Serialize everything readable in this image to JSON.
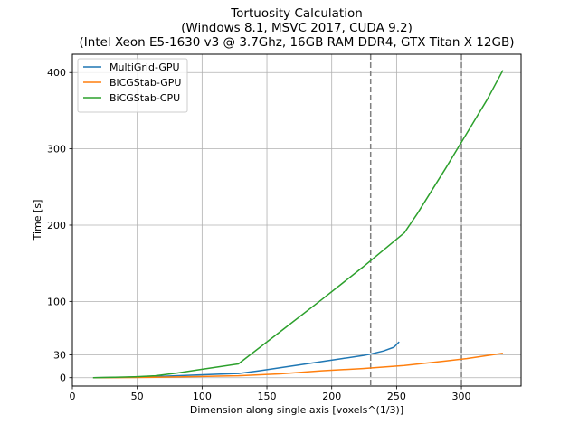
{
  "chart_data": {
    "type": "line",
    "title": [
      "Tortuosity Calculation",
      "(Windows 8.1, MSVC 2017, CUDA 9.2)",
      "(Intel Xeon E5-1630 v3 @ 3.7Ghz, 16GB RAM DDR4, GTX Titan X 12GB)"
    ],
    "xlabel": "Dimension along single axis [voxels^(1/3)]",
    "ylabel": "Time [s]",
    "xlim": [
      0,
      346
    ],
    "ylim": [
      -11,
      424
    ],
    "xticks": [
      0,
      50,
      100,
      150,
      200,
      250,
      300
    ],
    "yticks": [
      0,
      30,
      100,
      200,
      300,
      400
    ],
    "grid": true,
    "legend_position": "top-left",
    "vlines": [
      {
        "x": 230,
        "style": "dashed",
        "color": "#808080"
      },
      {
        "x": 300,
        "style": "dashed",
        "color": "#808080"
      }
    ],
    "series": [
      {
        "name": "MultiGrid-GPU",
        "color": "#1f77b4",
        "x": [
          16,
          32,
          48,
          64,
          80,
          96,
          112,
          128,
          144,
          160,
          176,
          192,
          208,
          224,
          230,
          240,
          248,
          252
        ],
        "y": [
          0,
          0.3,
          0.8,
          1.5,
          2.5,
          3.5,
          4.5,
          5.5,
          9,
          13,
          17,
          21,
          25,
          29,
          31,
          35,
          40,
          47
        ]
      },
      {
        "name": "BiCGStab-GPU",
        "color": "#ff7f0e",
        "x": [
          16,
          32,
          48,
          64,
          80,
          96,
          112,
          128,
          160,
          192,
          224,
          256,
          272,
          288,
          304,
          320,
          332
        ],
        "y": [
          0,
          0.1,
          0.3,
          0.5,
          1,
          1.5,
          2,
          2.5,
          5,
          9,
          12,
          16,
          19,
          22,
          25,
          29,
          32
        ]
      },
      {
        "name": "BiCGStab-CPU",
        "color": "#2ca02c",
        "x": [
          16,
          32,
          48,
          64,
          80,
          96,
          112,
          128,
          160,
          192,
          224,
          256,
          266,
          288,
          304,
          320,
          332
        ],
        "y": [
          0,
          0.5,
          1.2,
          2.5,
          6,
          10,
          14,
          18,
          60,
          102,
          145,
          190,
          215,
          275,
          320,
          365,
          403
        ]
      }
    ]
  }
}
